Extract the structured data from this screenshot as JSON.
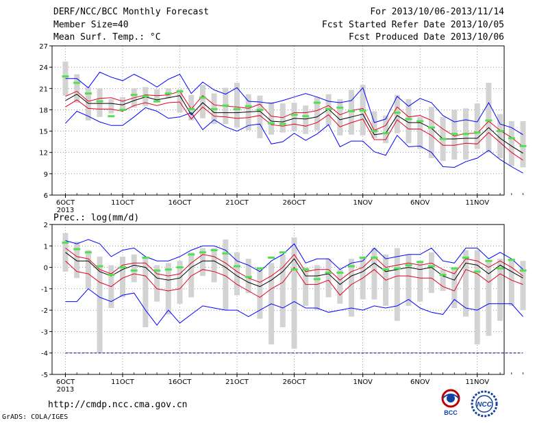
{
  "header": {
    "title": "DERF/NCC/BCC Monthly Forecast",
    "member_size": "Member Size=40",
    "variable": "Mean Surf. Temp.: °C",
    "period": "For 2013/10/06-2013/11/14",
    "refer_date": "Fcst Started Refer Date 2013/10/05",
    "produced_date": "Fcst Produced Date 2013/10/06"
  },
  "footer": {
    "url": "http://cmdp.ncc.cma.gov.cn",
    "credit": "GrADS: COLA/IGES",
    "logo_bcc": "BCC",
    "logo_ncc": "NCC"
  },
  "colors": {
    "range_line": "#0000ff",
    "spread_line": "#e00020",
    "mean_line": "#000000",
    "box": "#d3d3d3",
    "marker": "#50e050",
    "zero_line": "#000080"
  },
  "chart_data": [
    {
      "type": "line",
      "title": "",
      "ylabel": "",
      "ylim": [
        6,
        27
      ],
      "yticks": [
        6,
        9,
        12,
        15,
        18,
        21,
        24,
        27
      ],
      "xtick_labels": [
        "6OCT",
        "11OCT",
        "16OCT",
        "21OCT",
        "26OCT",
        "1NOV",
        "6NOV",
        "11NOV"
      ],
      "xtick_day_index": [
        0,
        5,
        10,
        15,
        20,
        26,
        31,
        36
      ],
      "year_label": "2013",
      "grid": true,
      "series": [
        {
          "key": "max",
          "values": [
            22.4,
            22.4,
            21.1,
            23.3,
            22.6,
            22.1,
            23.0,
            22.2,
            21.2,
            22.3,
            23.0,
            20.3,
            21.9,
            20.8,
            20.2,
            21.1,
            19.2,
            19.1,
            18.9,
            19.3,
            19.8,
            20.3,
            19.8,
            19.2,
            19.0,
            19.3,
            21.1,
            16.2,
            16.7,
            19.9,
            18.5,
            19.6,
            19.0,
            17.2,
            16.3,
            16.6,
            16.3,
            19.0,
            16.0,
            15.5,
            14.5
          ]
        },
        {
          "key": "p_high",
          "values": [
            19.9,
            20.6,
            19.2,
            19.6,
            19.7,
            19.2,
            19.7,
            20.1,
            20.0,
            20.1,
            20.6,
            18.1,
            20.0,
            18.7,
            18.5,
            18.4,
            18.2,
            18.8,
            17.1,
            16.9,
            17.6,
            17.6,
            17.9,
            18.6,
            17.3,
            17.9,
            18.2,
            15.1,
            15.8,
            18.4,
            17.0,
            17.2,
            16.5,
            15.3,
            14.3,
            14.7,
            14.7,
            16.4,
            15.1,
            14.1,
            12.8
          ]
        },
        {
          "key": "mean",
          "values": [
            19.3,
            20.2,
            18.9,
            18.9,
            18.9,
            18.7,
            19.3,
            19.8,
            19.4,
            19.7,
            20.0,
            17.3,
            19.0,
            17.6,
            17.6,
            17.6,
            17.7,
            17.8,
            16.4,
            16.3,
            16.8,
            16.7,
            17.0,
            18.1,
            16.6,
            17.0,
            17.4,
            14.5,
            14.7,
            17.2,
            16.2,
            16.2,
            15.4,
            13.9,
            13.9,
            14.0,
            14.0,
            15.5,
            14.0,
            12.9,
            11.9
          ]
        },
        {
          "key": "p_low",
          "values": [
            18.4,
            19.4,
            18.2,
            18.1,
            18.1,
            17.8,
            18.6,
            19.0,
            18.6,
            19.0,
            19.1,
            16.7,
            18.4,
            17.1,
            17.0,
            16.8,
            16.9,
            17.2,
            15.9,
            15.7,
            16.0,
            15.7,
            16.2,
            17.3,
            15.6,
            16.2,
            16.7,
            13.8,
            13.8,
            16.6,
            15.3,
            15.3,
            14.4,
            13.0,
            13.0,
            13.3,
            13.2,
            14.8,
            13.4,
            12.0,
            10.9
          ]
        },
        {
          "key": "min",
          "values": [
            16.1,
            17.8,
            17.1,
            16.3,
            15.8,
            15.8,
            17.0,
            18.3,
            17.8,
            16.8,
            17.0,
            17.6,
            15.2,
            16.6,
            15.6,
            15.0,
            15.8,
            16.0,
            13.2,
            13.5,
            14.7,
            13.7,
            14.6,
            15.9,
            12.8,
            13.6,
            13.6,
            12.1,
            11.6,
            14.4,
            12.8,
            12.9,
            12.0,
            10.0,
            9.9,
            10.7,
            11.2,
            12.3,
            11.0,
            10.0,
            9.1
          ]
        },
        {
          "key": "box_top",
          "values": [
            24.8,
            23.0,
            21.2,
            21.0,
            19.5,
            19.8,
            21.0,
            21.2,
            20.9,
            21.0,
            20.9,
            20.1,
            21.5,
            20.3,
            21.1,
            21.8,
            20.2,
            20.0,
            19.1,
            18.9,
            19.0,
            18.6,
            19.8,
            20.2,
            19.5,
            20.8,
            21.5,
            17.8,
            17.2,
            20.1,
            19.5,
            17.0,
            18.4,
            17.0,
            18.0,
            18.2,
            18.9,
            21.8,
            17.4,
            16.4,
            16.4
          ]
        },
        {
          "key": "box_bottom",
          "values": [
            20.0,
            19.0,
            16.5,
            17.0,
            17.5,
            17.9,
            18.3,
            18.5,
            19.0,
            19.6,
            17.6,
            16.5,
            16.8,
            16.0,
            16.0,
            15.5,
            15.1,
            14.0,
            14.5,
            14.8,
            15.0,
            14.6,
            15.1,
            15.8,
            14.4,
            14.5,
            14.4,
            14.0,
            13.3,
            14.7,
            13.3,
            12.5,
            11.2,
            10.8,
            11.0,
            11.0,
            12.5,
            12.0,
            11.2,
            10.1,
            9.9
          ]
        },
        {
          "key": "marker",
          "values": [
            22.7,
            21.8,
            20.3,
            19.2,
            17.1,
            18.0,
            20.1,
            19.9,
            19.2,
            20.3,
            20.6,
            18.1,
            19.7,
            18.1,
            18.6,
            18.1,
            18.5,
            18.0,
            16.1,
            16.0,
            17.3,
            17.1,
            19.0,
            18.1,
            18.3,
            17.8,
            17.9,
            15.0,
            14.7,
            17.6,
            16.7,
            16.4,
            15.5,
            13.9,
            14.6,
            14.6,
            14.8,
            16.5,
            15.0,
            14.0,
            12.9
          ]
        }
      ]
    },
    {
      "type": "line",
      "title": "Prec.: log(mm/d)",
      "ylabel": "",
      "ylim": [
        -5,
        2
      ],
      "yticks": [
        -5,
        -4,
        -3,
        -2,
        -1,
        0,
        1,
        2
      ],
      "xtick_labels": [
        "6OCT",
        "11OCT",
        "16OCT",
        "21OCT",
        "26OCT",
        "1NOV",
        "6NOV",
        "11NOV"
      ],
      "xtick_day_index": [
        0,
        5,
        10,
        15,
        20,
        26,
        31,
        36
      ],
      "year_label": "2013",
      "grid": true,
      "reference_line": -4,
      "series": [
        {
          "key": "max",
          "values": [
            1.25,
            1.1,
            1.3,
            1.1,
            0.5,
            0.8,
            0.9,
            0.5,
            0.3,
            0.3,
            0.5,
            0.8,
            1.0,
            1.0,
            0.8,
            0.3,
            0.1,
            -0.2,
            0.3,
            0.6,
            1.1,
            0.2,
            0.4,
            0.4,
            -0.1,
            0.2,
            0.3,
            0.9,
            0.4,
            0.5,
            0.6,
            0.6,
            0.9,
            0.3,
            0.2,
            0.9,
            0.9,
            0.4,
            0.7,
            0.4,
            -0.1
          ]
        },
        {
          "key": "p_high",
          "values": [
            0.9,
            0.5,
            0.4,
            -0.1,
            -0.3,
            0.1,
            0.2,
            0.2,
            -0.3,
            -0.4,
            -0.3,
            0.2,
            0.6,
            0.5,
            0.2,
            -0.2,
            -0.5,
            -0.7,
            -0.4,
            0.0,
            0.6,
            -0.2,
            -0.1,
            -0.1,
            -0.6,
            -0.2,
            0.0,
            0.5,
            0.0,
            0.1,
            0.2,
            0.1,
            0.2,
            -0.1,
            -0.3,
            0.4,
            0.3,
            0.0,
            0.3,
            0.0,
            -0.4
          ]
        },
        {
          "key": "mean",
          "values": [
            0.7,
            0.3,
            0.3,
            -0.2,
            -0.4,
            -0.1,
            0.1,
            0.0,
            -0.5,
            -0.6,
            -0.5,
            0.0,
            0.3,
            0.3,
            0.0,
            -0.4,
            -0.7,
            -0.9,
            -0.6,
            -0.2,
            0.4,
            -0.4,
            -0.4,
            -0.3,
            -0.8,
            -0.4,
            -0.2,
            0.2,
            -0.2,
            -0.1,
            0.0,
            -0.1,
            0.0,
            -0.4,
            -0.6,
            0.2,
            0.1,
            -0.3,
            0.1,
            -0.2,
            -0.5
          ]
        },
        {
          "key": "p_low",
          "values": [
            0.3,
            -0.2,
            -0.3,
            -0.7,
            -0.9,
            -0.5,
            -0.3,
            -0.4,
            -1.0,
            -1.1,
            -1.0,
            -0.4,
            -0.1,
            -0.2,
            -0.4,
            -0.8,
            -1.1,
            -1.4,
            -1.0,
            -0.7,
            0.0,
            -0.8,
            -0.8,
            -0.6,
            -1.3,
            -0.8,
            -0.5,
            -0.1,
            -0.6,
            -0.4,
            -0.4,
            -0.5,
            -0.5,
            -0.9,
            -1.1,
            -0.1,
            -0.3,
            -0.7,
            -0.3,
            -0.6,
            -0.8
          ]
        },
        {
          "key": "min",
          "values": [
            -1.6,
            -1.6,
            -1.0,
            -1.4,
            -1.6,
            -1.3,
            -1.2,
            -2.0,
            -2.7,
            -2.0,
            -2.6,
            -2.2,
            -1.8,
            -1.9,
            -2.0,
            -2.0,
            -2.3,
            -2.0,
            -1.7,
            -1.9,
            -1.6,
            -1.9,
            -1.9,
            -2.1,
            -2.0,
            -1.9,
            -2.0,
            -1.8,
            -1.9,
            -1.8,
            -1.5,
            -1.9,
            -2.1,
            -2.2,
            -1.5,
            -1.9,
            -2.0,
            -1.7,
            -1.7,
            -1.7,
            -2.3
          ]
        },
        {
          "key": "box_top",
          "values": [
            1.6,
            1.2,
            0.8,
            0.5,
            0.1,
            0.5,
            0.6,
            0.4,
            0.1,
            0.2,
            0.3,
            0.7,
            0.9,
            0.9,
            1.3,
            0.7,
            0.4,
            0.0,
            0.2,
            0.6,
            1.4,
            0.0,
            0.1,
            0.4,
            -0.1,
            0.4,
            0.4,
            0.9,
            0.6,
            0.9,
            0.6,
            0.3,
            0.7,
            -0.1,
            0.0,
            0.8,
            0.8,
            0.3,
            0.4,
            0.4,
            0.3
          ]
        },
        {
          "key": "box_bottom",
          "values": [
            -0.2,
            -0.5,
            -1.0,
            -4.0,
            -1.9,
            -1.4,
            -0.7,
            -2.8,
            -1.6,
            -2.2,
            -1.7,
            -1.4,
            -0.4,
            -0.7,
            -2.0,
            -1.3,
            -1.2,
            -2.4,
            -3.6,
            -2.8,
            -3.8,
            -1.8,
            -2.0,
            -1.4,
            -1.7,
            -2.3,
            -1.5,
            -1.5,
            -1.8,
            -2.5,
            -1.8,
            -1.6,
            -1.2,
            -1.1,
            -1.9,
            -2.3,
            -3.6,
            -3.2,
            -2.5,
            -1.8,
            -2.0
          ]
        },
        {
          "key": "marker",
          "values": [
            1.15,
            0.85,
            0.7,
            0.05,
            -0.35,
            0.0,
            -0.15,
            0.45,
            -0.15,
            -0.1,
            0.0,
            0.6,
            0.7,
            0.8,
            0.65,
            0.05,
            -0.45,
            -0.05,
            0.45,
            0.7,
            -0.1,
            -0.1,
            -0.55,
            -0.25,
            -0.25,
            0.05,
            0.45,
            0.45,
            -0.1,
            -0.05,
            0.1,
            0.25,
            0.05,
            -0.35,
            -0.05,
            0.45,
            -0.2,
            0.3,
            -0.05,
            0.35,
            -0.15
          ]
        }
      ]
    }
  ]
}
